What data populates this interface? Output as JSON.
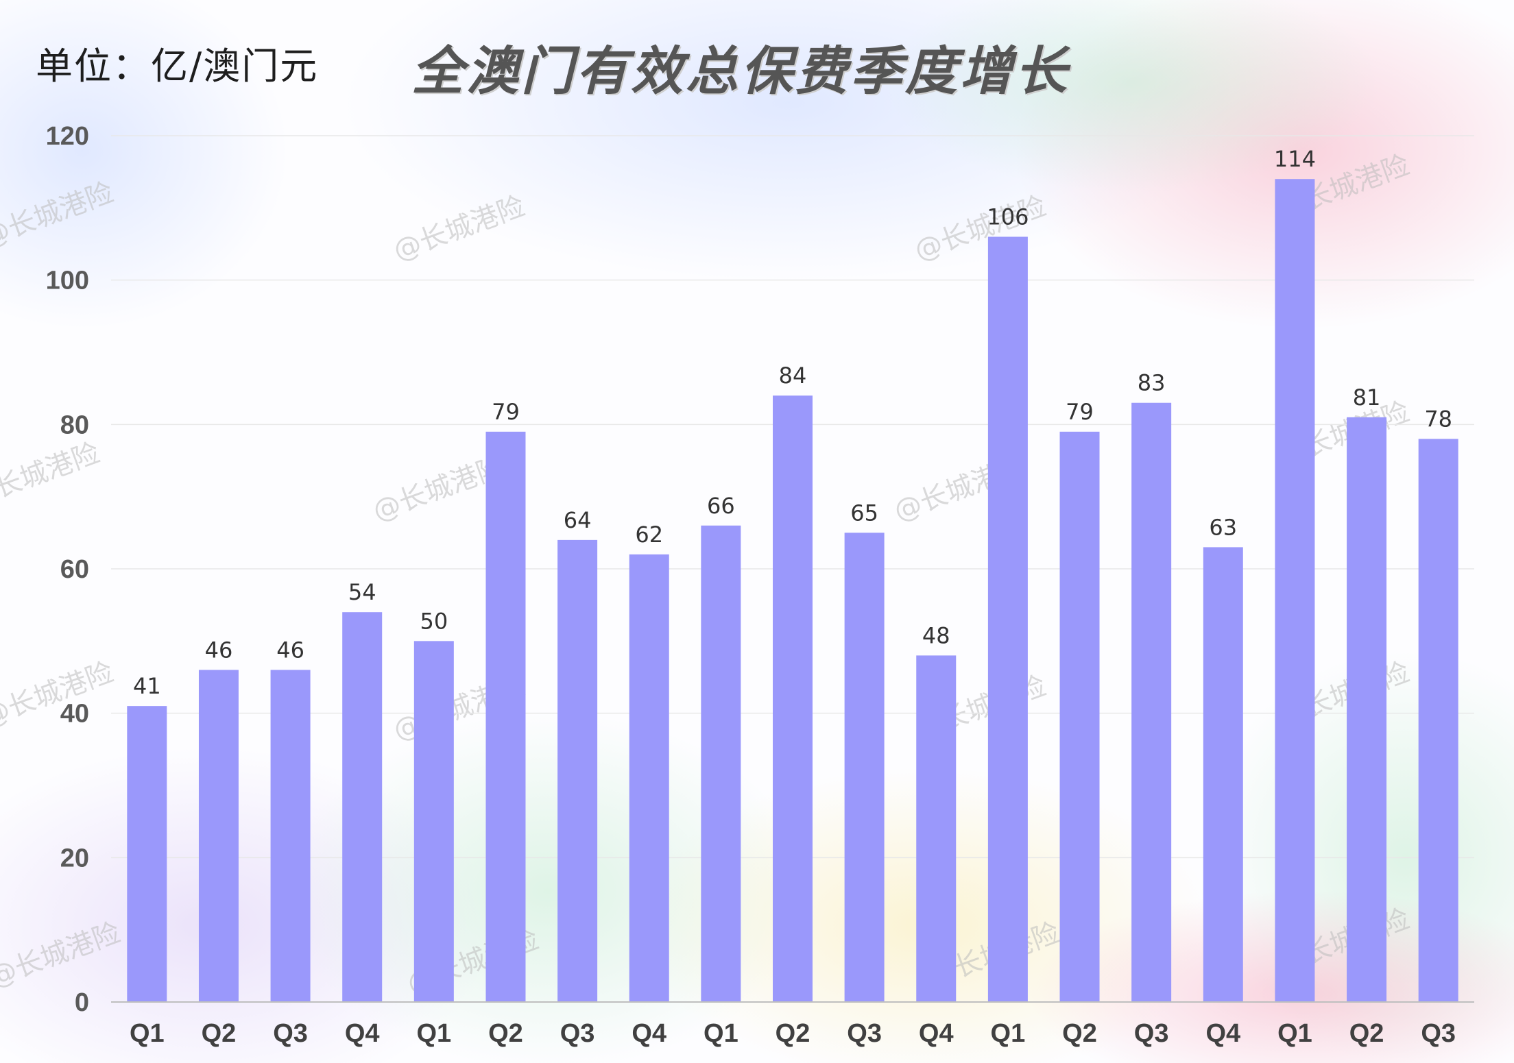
{
  "header": {
    "unit": "单位：亿/澳门元",
    "title": "全澳门有效总保费季度增长"
  },
  "watermark": "@长城港险",
  "colors": {
    "bar": "#9a98fb",
    "grid": "#e8e8e8",
    "axis": "#bfbfbf"
  },
  "chart_data": {
    "type": "bar",
    "title": "全澳门有效总保费季度增长",
    "unit_label": "单位：亿/澳门元",
    "categories": [
      "Q1",
      "Q2",
      "Q3",
      "Q4",
      "Q1",
      "Q2",
      "Q3",
      "Q4",
      "Q1",
      "Q2",
      "Q3",
      "Q4",
      "Q1",
      "Q2",
      "Q3",
      "Q4",
      "Q1",
      "Q2",
      "Q3"
    ],
    "values": [
      41,
      46,
      46,
      54,
      50,
      79,
      64,
      62,
      66,
      84,
      65,
      48,
      106,
      79,
      83,
      63,
      114,
      81,
      78
    ],
    "ylim": [
      0,
      120
    ],
    "yticks": [
      0,
      20,
      40,
      60,
      80,
      100,
      120
    ],
    "grid": true,
    "legend": "none"
  }
}
